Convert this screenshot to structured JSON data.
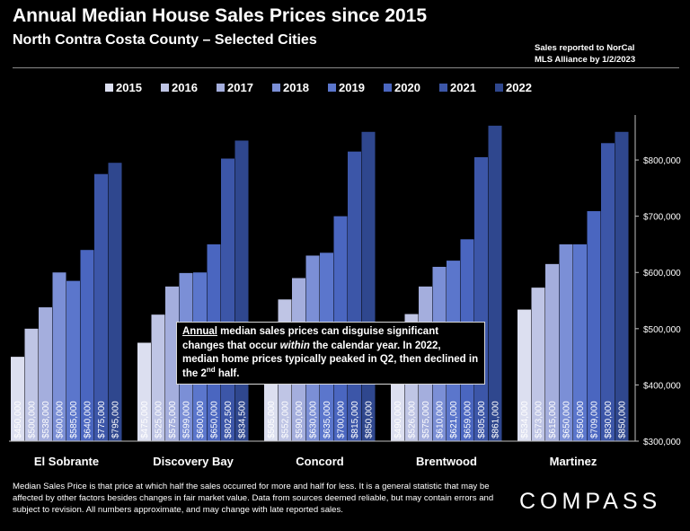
{
  "header": {
    "title": "Annual Median House Sales Prices since 2015",
    "subtitle": "North Contra Costa County – Selected Cities",
    "source_line1": "Sales reported to NorCal",
    "source_line2": "MLS Alliance by 1/2/2023"
  },
  "callout": {
    "part1": "Annual",
    "part2": " median sales prices can disguise significant changes that occur ",
    "part3": "within",
    "part4": " the calendar year. In 2022, median home prices typically peaked in Q2, then declined in the 2",
    "part5": "nd",
    "part6": " half."
  },
  "footnote": "Median Sales Price is that price at which half the sales occurred for more and half for less. It is a general statistic that may be affected by other factors besides changes in fair market value. Data from sources deemed reliable, but may contain errors and subject to revision.  All numbers approximate, and may change with late reported sales.",
  "logo": "COMPASS",
  "chart_data": {
    "type": "bar",
    "categories": [
      "El Sobrante",
      "Discovery Bay",
      "Concord",
      "Brentwood",
      "Martinez"
    ],
    "series": [
      {
        "name": "2015",
        "color": "#dcdff0",
        "values": [
          450000,
          475000,
          505000,
          490000,
          534000
        ],
        "labels": [
          "$450,000",
          "$475,000",
          "$505,000",
          "$490,000",
          "$534,000"
        ]
      },
      {
        "name": "2016",
        "color": "#bfc5e5",
        "values": [
          500000,
          525000,
          552000,
          526000,
          573000
        ],
        "labels": [
          "$500,000",
          "$525,000",
          "$552,000",
          "$526,000",
          "$573,000"
        ]
      },
      {
        "name": "2017",
        "color": "#a4aedd",
        "values": [
          538000,
          575000,
          590000,
          575000,
          615000
        ],
        "labels": [
          "$538,000",
          "$575,000",
          "$590,000",
          "$575,000",
          "$615,000"
        ]
      },
      {
        "name": "2018",
        "color": "#7b8fd6",
        "values": [
          600000,
          599000,
          630000,
          610000,
          650000
        ],
        "labels": [
          "$600,000",
          "$599,000",
          "$630,000",
          "$610,000",
          "$650,000"
        ]
      },
      {
        "name": "2019",
        "color": "#5b76cc",
        "values": [
          585000,
          600000,
          635000,
          621000,
          650000
        ],
        "labels": [
          "$585,000",
          "$600,000",
          "$635,000",
          "$621,000",
          "$650,000"
        ]
      },
      {
        "name": "2020",
        "color": "#4a66c0",
        "values": [
          640000,
          650000,
          700000,
          659000,
          709000
        ],
        "labels": [
          "$640,000",
          "$650,000",
          "$700,000",
          "$659,000",
          "$709,000"
        ]
      },
      {
        "name": "2021",
        "color": "#3c56a8",
        "values": [
          775000,
          802500,
          815000,
          805000,
          830000
        ],
        "labels": [
          "$775,000",
          "$802,500",
          "$815,000",
          "$805,000",
          "$830,000"
        ]
      },
      {
        "name": "2022",
        "color": "#2f478e",
        "values": [
          795000,
          834500,
          850000,
          861000,
          850000
        ],
        "labels": [
          "$795,000",
          "$834,500",
          "$850,000",
          "$861,000",
          "$850,000"
        ]
      }
    ],
    "yticks": [
      300000,
      400000,
      500000,
      600000,
      700000,
      800000
    ],
    "ytick_labels": [
      "$300,000",
      "$400,000",
      "$500,000",
      "$600,000",
      "$700,000",
      "$800,000"
    ],
    "ylim": [
      300000,
      880000
    ],
    "legend": "top-center",
    "grid": false
  }
}
